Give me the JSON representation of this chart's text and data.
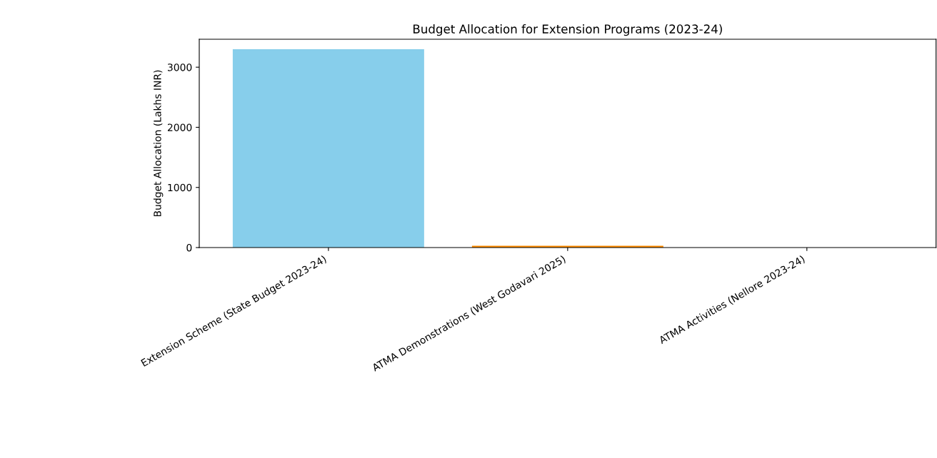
{
  "chart_data": {
    "type": "bar",
    "title": "Budget Allocation for Extension Programs (2023-24)",
    "ylabel": "Budget Allocation (Lakhs INR)",
    "categories": [
      "Extension Scheme (State Budget 2023-24)",
      "ATMA Demonstrations (West Godavari 2025)",
      "ATMA Activities (Nellore 2023-24)"
    ],
    "values": [
      3300,
      30,
      null
    ],
    "colors": [
      "#87ceeb",
      "#ff8c00",
      "#90ee90"
    ],
    "ylim": [
      0,
      3465
    ],
    "yticks": [
      0,
      1000,
      2000,
      3000
    ],
    "grid": false,
    "legend": false
  }
}
